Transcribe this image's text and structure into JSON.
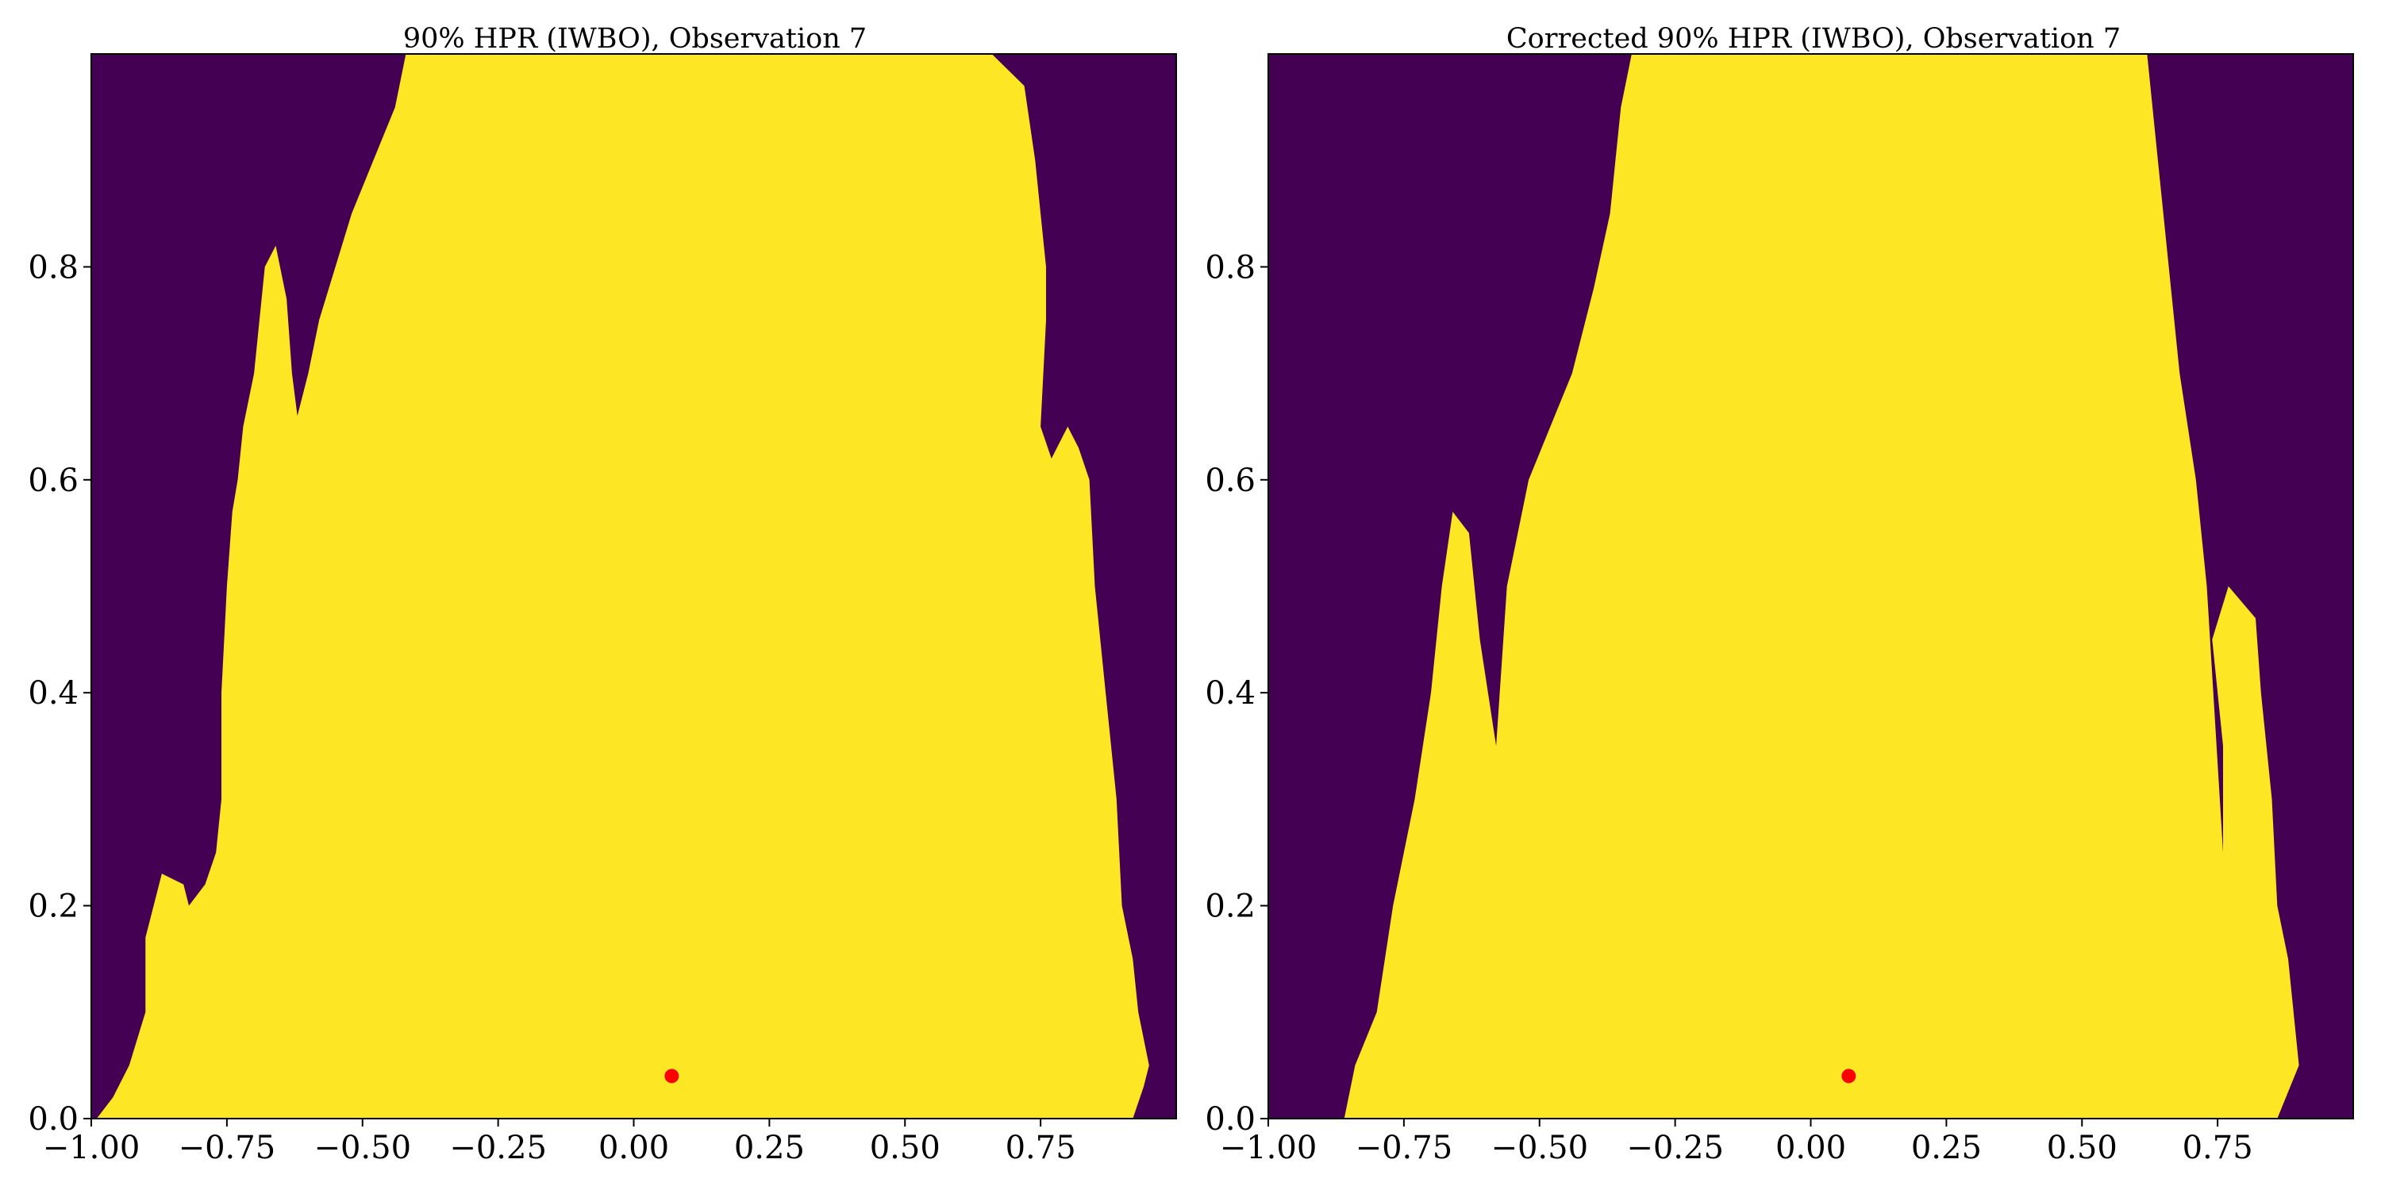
{
  "colors": {
    "inside": "#fde725",
    "outside": "#440154",
    "marker": "#ff0000"
  },
  "chart_data": [
    {
      "type": "heatmap",
      "title": "90% HPR (IWBO), Observation 7",
      "xlim": [
        -1.0,
        1.0
      ],
      "ylim": [
        0.0,
        1.0
      ],
      "x_ticks": [
        "−1.00",
        "−0.75",
        "−0.50",
        "−0.25",
        "0.00",
        "0.25",
        "0.50",
        "0.75"
      ],
      "x_tick_values": [
        -1.0,
        -0.75,
        -0.5,
        -0.25,
        0.0,
        0.25,
        0.5,
        0.75
      ],
      "y_ticks": [
        "0.0",
        "0.2",
        "0.4",
        "0.6",
        "0.8"
      ],
      "y_tick_values": [
        0.0,
        0.2,
        0.4,
        0.6,
        0.8
      ],
      "legend": "none",
      "grid": false,
      "marker": {
        "x": 0.07,
        "y": 0.04
      },
      "region_left_boundary": [
        [
          0.0,
          -0.99
        ],
        [
          0.02,
          -0.96
        ],
        [
          0.05,
          -0.93
        ],
        [
          0.1,
          -0.9
        ],
        [
          0.17,
          -0.9
        ],
        [
          0.21,
          -0.88
        ],
        [
          0.23,
          -0.87
        ],
        [
          0.22,
          -0.83
        ],
        [
          0.2,
          -0.82
        ],
        [
          0.22,
          -0.79
        ],
        [
          0.25,
          -0.77
        ],
        [
          0.3,
          -0.76
        ],
        [
          0.4,
          -0.76
        ],
        [
          0.5,
          -0.75
        ],
        [
          0.57,
          -0.74
        ],
        [
          0.6,
          -0.73
        ],
        [
          0.65,
          -0.72
        ],
        [
          0.7,
          -0.7
        ],
        [
          0.75,
          -0.69
        ],
        [
          0.8,
          -0.68
        ],
        [
          0.82,
          -0.66
        ],
        [
          0.77,
          -0.64
        ],
        [
          0.7,
          -0.63
        ],
        [
          0.66,
          -0.62
        ],
        [
          0.7,
          -0.6
        ],
        [
          0.75,
          -0.58
        ],
        [
          0.8,
          -0.55
        ],
        [
          0.85,
          -0.52
        ],
        [
          0.9,
          -0.48
        ],
        [
          0.95,
          -0.44
        ],
        [
          1.0,
          -0.42
        ]
      ],
      "region_right_boundary": [
        [
          0.0,
          0.92
        ],
        [
          0.03,
          0.94
        ],
        [
          0.05,
          0.95
        ],
        [
          0.1,
          0.93
        ],
        [
          0.15,
          0.92
        ],
        [
          0.2,
          0.9
        ],
        [
          0.3,
          0.89
        ],
        [
          0.4,
          0.87
        ],
        [
          0.5,
          0.85
        ],
        [
          0.6,
          0.84
        ],
        [
          0.63,
          0.82
        ],
        [
          0.65,
          0.8
        ],
        [
          0.62,
          0.77
        ],
        [
          0.65,
          0.75
        ],
        [
          0.75,
          0.76
        ],
        [
          0.8,
          0.76
        ],
        [
          0.85,
          0.75
        ],
        [
          0.9,
          0.74
        ],
        [
          0.97,
          0.72
        ],
        [
          1.0,
          0.66
        ]
      ]
    },
    {
      "type": "heatmap",
      "title": "Corrected 90% HPR (IWBO), Observation 7",
      "xlim": [
        -1.0,
        1.0
      ],
      "ylim": [
        0.0,
        1.0
      ],
      "x_ticks": [
        "−1.00",
        "−0.75",
        "−0.50",
        "−0.25",
        "0.00",
        "0.25",
        "0.50",
        "0.75"
      ],
      "x_tick_values": [
        -1.0,
        -0.75,
        -0.5,
        -0.25,
        0.0,
        0.25,
        0.5,
        0.75
      ],
      "y_ticks": [
        "0.0",
        "0.2",
        "0.4",
        "0.6",
        "0.8"
      ],
      "y_tick_values": [
        0.0,
        0.2,
        0.4,
        0.6,
        0.8
      ],
      "legend": "none",
      "grid": false,
      "marker": {
        "x": 0.07,
        "y": 0.04
      },
      "region_left_boundary": [
        [
          0.0,
          -0.86
        ],
        [
          0.05,
          -0.84
        ],
        [
          0.1,
          -0.8
        ],
        [
          0.2,
          -0.77
        ],
        [
          0.3,
          -0.73
        ],
        [
          0.4,
          -0.7
        ],
        [
          0.5,
          -0.68
        ],
        [
          0.57,
          -0.66
        ],
        [
          0.55,
          -0.63
        ],
        [
          0.45,
          -0.61
        ],
        [
          0.35,
          -0.58
        ],
        [
          0.5,
          -0.56
        ],
        [
          0.6,
          -0.52
        ],
        [
          0.65,
          -0.48
        ],
        [
          0.7,
          -0.44
        ],
        [
          0.78,
          -0.4
        ],
        [
          0.85,
          -0.37
        ],
        [
          0.9,
          -0.36
        ],
        [
          0.95,
          -0.35
        ],
        [
          1.0,
          -0.33
        ]
      ],
      "region_right_boundary": [
        [
          0.0,
          0.86
        ],
        [
          0.05,
          0.9
        ],
        [
          0.15,
          0.88
        ],
        [
          0.2,
          0.86
        ],
        [
          0.3,
          0.85
        ],
        [
          0.4,
          0.83
        ],
        [
          0.47,
          0.82
        ],
        [
          0.5,
          0.77
        ],
        [
          0.45,
          0.74
        ],
        [
          0.35,
          0.76
        ],
        [
          0.25,
          0.76
        ],
        [
          0.5,
          0.73
        ],
        [
          0.6,
          0.71
        ],
        [
          0.7,
          0.68
        ],
        [
          0.8,
          0.66
        ],
        [
          0.9,
          0.64
        ],
        [
          1.0,
          0.62
        ]
      ]
    }
  ]
}
